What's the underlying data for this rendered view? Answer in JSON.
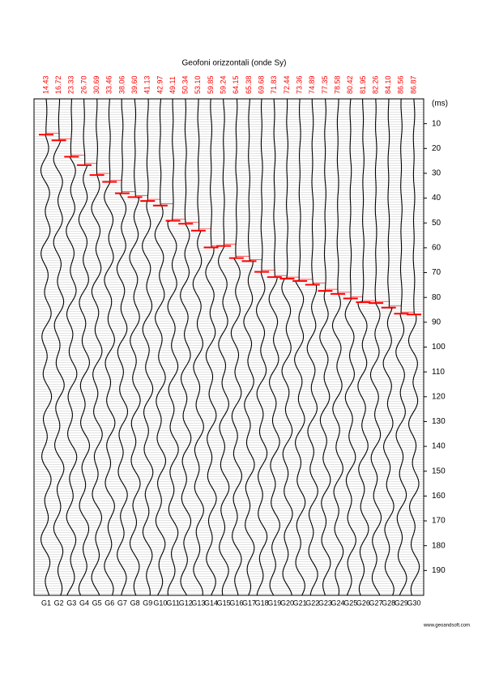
{
  "chart_data": {
    "type": "seismogram",
    "title": "Geofoni orizzontali (onde Sy)",
    "y_label": "(ms)",
    "categories": [
      "G1",
      "G2",
      "G3",
      "G4",
      "G5",
      "G6",
      "G7",
      "G8",
      "G9",
      "G10",
      "G11",
      "G12",
      "G13",
      "G14",
      "G15",
      "G16",
      "G17",
      "G18",
      "G19",
      "G20",
      "G21",
      "G22",
      "G23",
      "G24",
      "G25",
      "G26",
      "G27",
      "G28",
      "G29",
      "G30"
    ],
    "values": [
      14.43,
      16.72,
      23.33,
      26.7,
      30.69,
      33.46,
      38.06,
      39.6,
      41.13,
      42.97,
      49.11,
      50.34,
      53.1,
      59.85,
      59.24,
      64.15,
      65.38,
      69.68,
      71.83,
      72.44,
      73.36,
      74.89,
      77.35,
      78.58,
      80.42,
      81.95,
      82.26,
      84.1,
      86.56,
      86.87
    ],
    "value_labels": [
      "14.43",
      "16.72",
      "23.33",
      "26.70",
      "30.69",
      "33.46",
      "38.06",
      "39.60",
      "41.13",
      "42.97",
      "49.11",
      "50.34",
      "53.10",
      "59.85",
      "59.24",
      "64.15",
      "65.38",
      "69.68",
      "71.83",
      "72.44",
      "73.36",
      "74.89",
      "77.35",
      "78.58",
      "80.42",
      "81.95",
      "82.26",
      "84.10",
      "86.56",
      "86.87"
    ],
    "color": "#ff0000",
    "ylim": [
      0,
      200
    ],
    "yticks": [
      10,
      20,
      30,
      40,
      50,
      60,
      70,
      80,
      90,
      100,
      110,
      120,
      130,
      140,
      150,
      160,
      170,
      180,
      190
    ],
    "y_inverted": true,
    "footer": "www.geoandsoft.com"
  }
}
